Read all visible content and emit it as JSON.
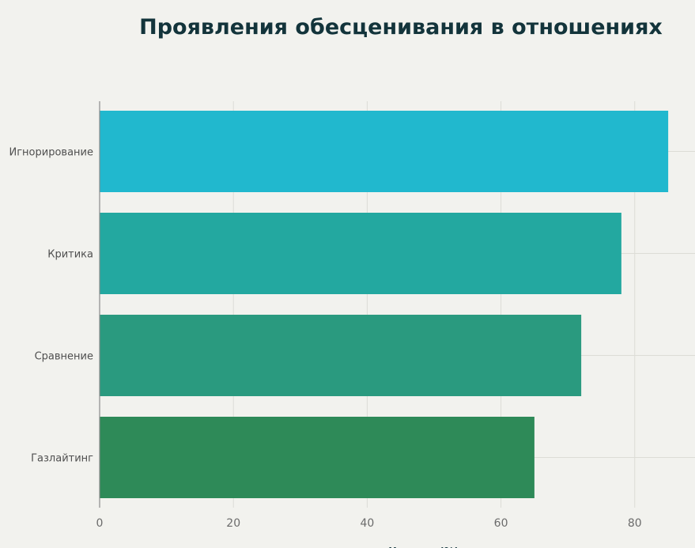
{
  "chart_data": {
    "type": "bar",
    "orientation": "horizontal",
    "title": "Проявления обесценивания в отношениях",
    "xlabel": "Частота (%)",
    "ylabel": "",
    "categories": [
      "Игнорирование",
      "Критика",
      "Сравнение",
      "Газлайтинг"
    ],
    "values": [
      85,
      78,
      72,
      65
    ],
    "colors": [
      "#21b8ce",
      "#23a8a0",
      "#2a9a7f",
      "#2e8a58"
    ],
    "xlim": [
      0,
      88
    ],
    "xticks": [
      0,
      20,
      40,
      60,
      80
    ],
    "grid": true
  }
}
